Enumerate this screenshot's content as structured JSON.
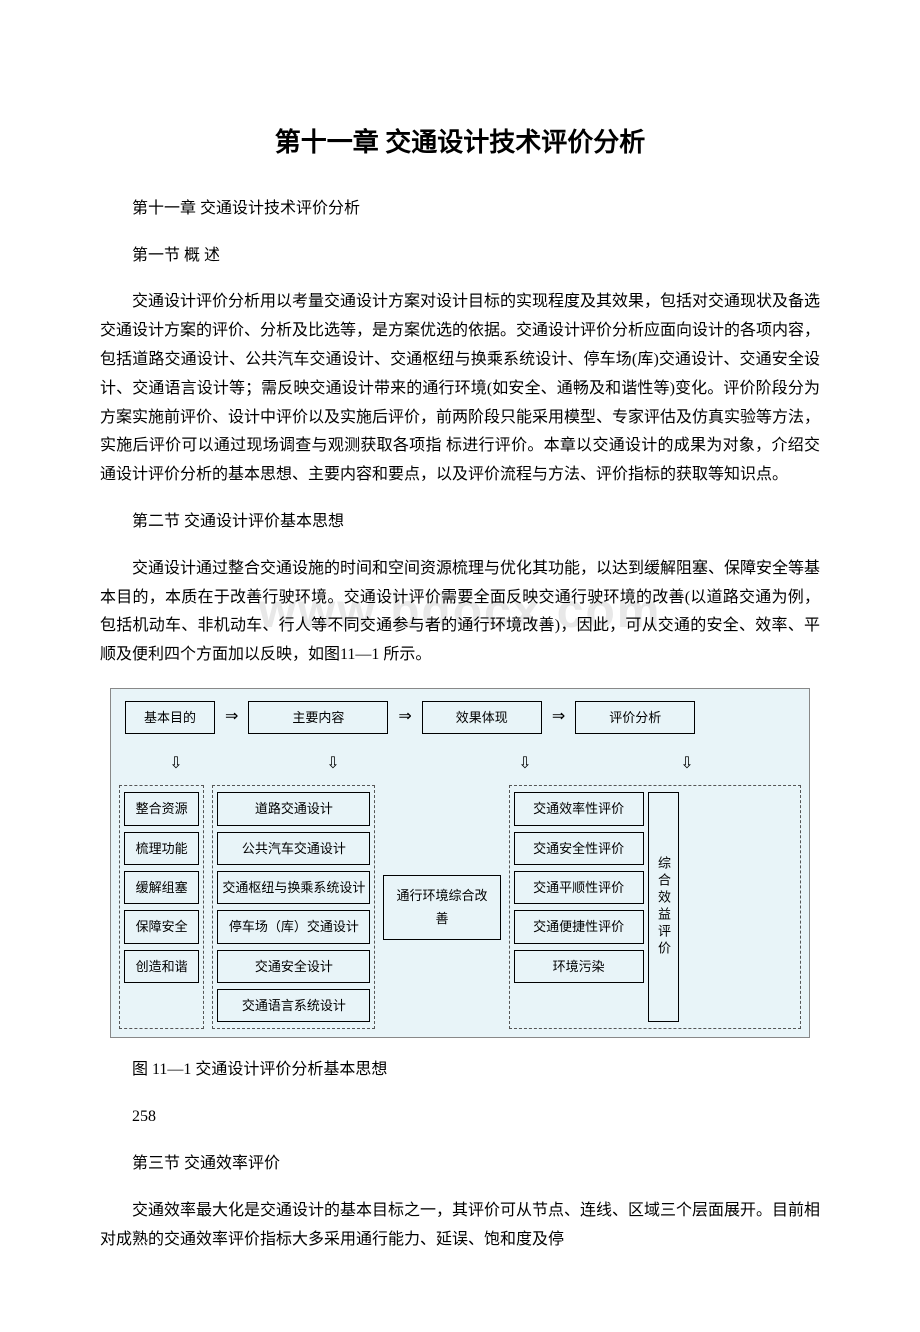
{
  "chapter_title": "第十一章 交通设计技术评价分析",
  "subtitle": "第十一章 交通设计技术评价分析",
  "sections": {
    "s1": {
      "heading": "第一节 概 述",
      "p1": "交通设计评价分析用以考量交通设计方案对设计目标的实现程度及其效果，包括对交通现状及备选交通设计方案的评价、分析及比选等，是方案优选的依据。交通设计评价分析应面向设计的各项内容，包括道路交通设计、公共汽车交通设计、交通枢纽与换乘系统设计、停车场(库)交通设计、交通安全设计、交通语言设计等；需反映交通设计带来的通行环境(如安全、通畅及和谐性等)变化。评价阶段分为方案实施前评价、设计中评价以及实施后评价，前两阶段只能采用模型、专家评估及仿真实验等方法，实施后评价可以通过现场调查与观测获取各项指 标进行评价。本章以交通设计的成果为对象，介绍交通设计评价分析的基本思想、主要内容和要点，以及评价流程与方法、评价指标的获取等知识点。"
    },
    "s2": {
      "heading": "第二节 交通设计评价基本思想",
      "p1": "交通设计通过整合交通设施的时间和空间资源梳理与优化其功能，以达到缓解阻塞、保障安全等基本目的，本质在于改善行驶环境。交通设计评价需要全面反映交通行驶环境的改善(以道路交通为例，包括机动车、非机动车、行人等不同交通参与者的通行环境改善)，因此，可从交通的安全、效率、平顺及便利四个方面加以反映，如图11—1 所示。"
    },
    "s3": {
      "heading": "第三节 交通效率评价",
      "p1": "交通效率最大化是交通设计的基本目标之一，其评价可从节点、连线、区域三个层面展开。目前相对成熟的交通效率评价指标大多采用通行能力、延误、饱和度及停"
    }
  },
  "watermark": "www.bdocx.com",
  "diagram": {
    "background_color": "#e8f4f8",
    "border_color": "#000000",
    "text_color": "#000000",
    "font_size": 13,
    "header": {
      "h1": "基本目的",
      "h2": "主要内容",
      "h3": "效果体现",
      "h4": "评价分析",
      "arrow": "⇒"
    },
    "arrow_down": "⇩",
    "col1": [
      "整合资源",
      "梳理功能",
      "缓解组塞",
      "保障安全",
      "创造和谐"
    ],
    "col2": [
      "道路交通设计",
      "公共汽车交通设计",
      "交通枢纽与换乘系统设计",
      "停车场（库）交通设计",
      "交通安全设计",
      "交通语言系统设计"
    ],
    "col3": "通行环境综合改善",
    "col4": [
      "交通效率性评价",
      "交通安全性评价",
      "交通平顺性评价",
      "交通便捷性评价",
      "环境污染"
    ],
    "col4_side": "综合效益评价"
  },
  "caption": "图 11—1 交通设计评价分析基本思想",
  "page_number": "258"
}
